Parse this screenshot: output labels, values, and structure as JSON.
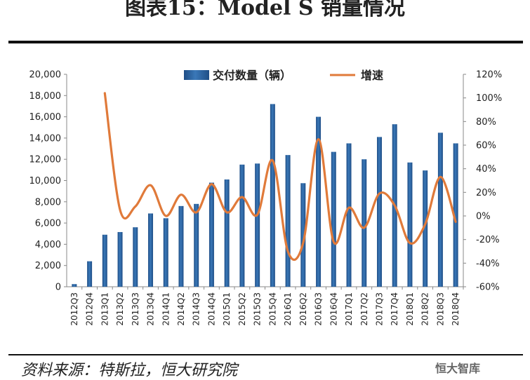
{
  "header": {
    "title": "图表15：Model S 销量情况"
  },
  "footer": {
    "source": "资料来源：特斯拉，恒大研究院",
    "watermark": "恒大智库"
  },
  "colors": {
    "bar": "#3a78b8",
    "bar_dark": "#1f4e86",
    "line": "#e07a3a"
  },
  "chart_data": {
    "type": "bar",
    "categories": [
      "2012Q3",
      "2012Q4",
      "2013Q1",
      "2013Q2",
      "2013Q3",
      "2013Q4",
      "2014Q1",
      "2014Q2",
      "2014Q3",
      "2014Q4",
      "2015Q1",
      "2015Q2",
      "2015Q3",
      "2015Q4",
      "2016Q1",
      "2016Q2",
      "2016Q3",
      "2016Q4",
      "2017Q1",
      "2017Q2",
      "2017Q3",
      "2017Q4",
      "2018Q1",
      "2018Q2",
      "2018Q3",
      "2018Q4"
    ],
    "series": [
      {
        "name": "交付数量（辆）",
        "type": "bar",
        "axis": "left",
        "values": [
          250,
          2400,
          4900,
          5150,
          5600,
          6900,
          6450,
          7600,
          7800,
          9800,
          10100,
          11500,
          11600,
          17200,
          12400,
          9750,
          16000,
          12700,
          13500,
          12000,
          14100,
          15300,
          11700,
          10950,
          14500,
          13500
        ]
      },
      {
        "name": "增速",
        "type": "line",
        "axis": "right",
        "values": [
          null,
          null,
          104,
          5,
          8,
          26,
          0,
          18,
          3,
          27,
          3,
          16,
          1,
          47,
          -30,
          -23,
          65,
          -22,
          7,
          -10,
          19,
          9,
          -23,
          -7,
          33,
          -5
        ]
      }
    ],
    "yaxis_left": {
      "min": 0,
      "max": 20000,
      "step": 2000,
      "ticks": [
        "0",
        "2,000",
        "4,000",
        "6,000",
        "8,000",
        "10,000",
        "12,000",
        "14,000",
        "16,000",
        "18,000",
        "20,000"
      ]
    },
    "yaxis_right": {
      "min": -60,
      "max": 120,
      "step": 20,
      "ticks": [
        "-60%",
        "-40%",
        "-20%",
        "0%",
        "20%",
        "40%",
        "60%",
        "80%",
        "100%",
        "120%"
      ]
    },
    "legend_position": "top-center",
    "grid": false
  }
}
